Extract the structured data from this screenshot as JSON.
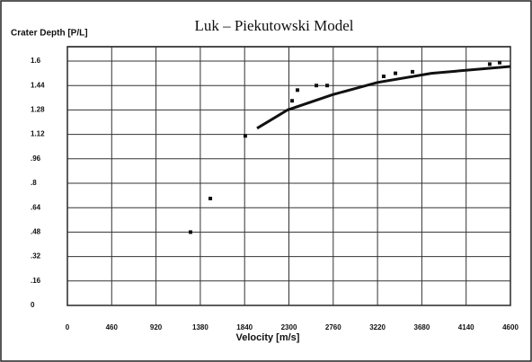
{
  "chart_data": {
    "type": "scatter",
    "title": "Luk – Piekutowski Model",
    "y_label": "Crater Depth [P/L]",
    "x_label": "Velocity [m/s]",
    "xlim": [
      0,
      4600
    ],
    "xticks": [
      0,
      460,
      920,
      1380,
      1840,
      2300,
      2760,
      3220,
      3680,
      4140,
      4600
    ],
    "ylim": [
      0,
      1.6
    ],
    "yticks": [
      0,
      {
        "value": 0.16,
        "label": ".16"
      },
      {
        "value": 0.32,
        "label": ".32"
      },
      {
        "value": 0.48,
        "label": ".48"
      },
      {
        "value": 0.64,
        "label": ".64"
      },
      {
        "value": 0.8,
        "label": ".8"
      },
      {
        "value": 0.96,
        "label": ".96"
      },
      1.12,
      1.28,
      1.44,
      1.6
    ],
    "grid": true,
    "points": {
      "color": "#111111",
      "x": [
        1278,
        1484,
        1847,
        2333,
        2389,
        2585,
        2697,
        3284,
        3406,
        3583,
        4385,
        4488
      ],
      "values": [
        0.48,
        0.7,
        1.11,
        1.34,
        1.41,
        1.44,
        1.44,
        1.5,
        1.52,
        1.53,
        1.58,
        1.59
      ]
    },
    "fit": {
      "color": "#111111",
      "x": [
        1969,
        2286,
        2752,
        3219,
        3779,
        4600
      ],
      "values": [
        1.16,
        1.28,
        1.38,
        1.46,
        1.52,
        1.565
      ]
    }
  }
}
